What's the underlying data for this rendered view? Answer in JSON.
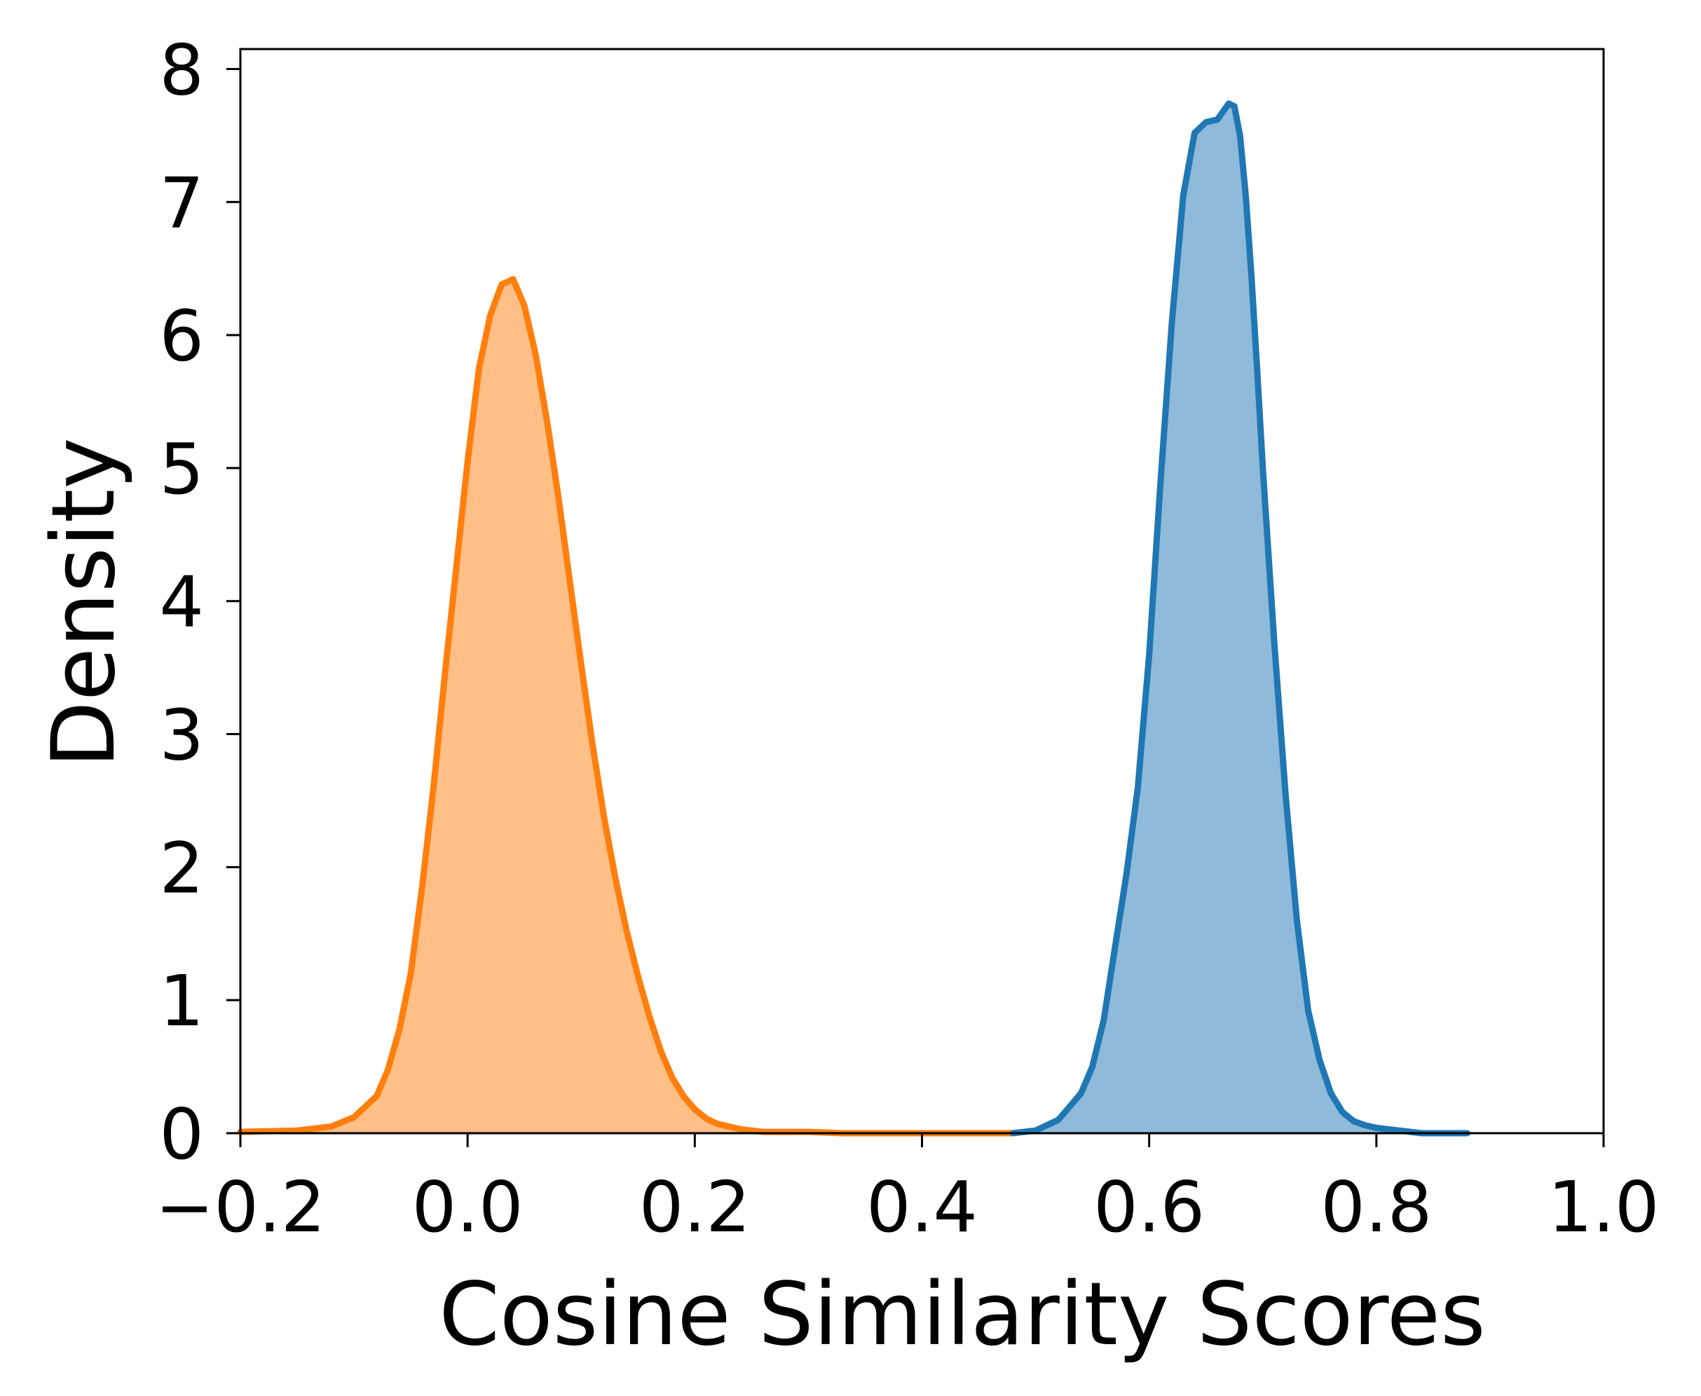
{
  "chart_data": {
    "type": "area",
    "title": "",
    "xlabel": "Cosine Similarity Scores",
    "ylabel": "Density",
    "xlim": [
      -0.2,
      1.0
    ],
    "ylim": [
      0,
      8.15
    ],
    "x_ticks": [
      -0.2,
      0.0,
      0.2,
      0.4,
      0.6,
      0.8,
      1.0
    ],
    "x_tick_labels": [
      "−0.2",
      "0.0",
      "0.2",
      "0.4",
      "0.6",
      "0.8",
      "1.0"
    ],
    "y_ticks": [
      0,
      1,
      2,
      3,
      4,
      5,
      6,
      7,
      8
    ],
    "y_tick_labels": [
      "0",
      "1",
      "2",
      "3",
      "4",
      "5",
      "6",
      "7",
      "8"
    ],
    "grid": false,
    "legend": "none",
    "series": [
      {
        "color": "#ff7f0e",
        "fill": "#ffbf86",
        "x": [
          -0.2,
          -0.15,
          -0.12,
          -0.1,
          -0.09,
          -0.08,
          -0.07,
          -0.06,
          -0.05,
          -0.04,
          -0.03,
          -0.02,
          -0.01,
          0.0,
          0.01,
          0.02,
          0.03,
          0.04,
          0.05,
          0.06,
          0.07,
          0.08,
          0.09,
          0.1,
          0.11,
          0.12,
          0.13,
          0.14,
          0.15,
          0.16,
          0.17,
          0.18,
          0.19,
          0.2,
          0.21,
          0.22,
          0.23,
          0.24,
          0.25,
          0.26,
          0.28,
          0.3,
          0.33,
          0.36,
          0.4,
          0.44,
          0.48
        ],
        "y": [
          0.01,
          0.02,
          0.05,
          0.12,
          0.2,
          0.28,
          0.48,
          0.78,
          1.2,
          1.85,
          2.6,
          3.45,
          4.25,
          5.05,
          5.75,
          6.15,
          6.38,
          6.42,
          6.22,
          5.85,
          5.35,
          4.78,
          4.15,
          3.52,
          2.92,
          2.38,
          1.92,
          1.52,
          1.18,
          0.88,
          0.62,
          0.42,
          0.28,
          0.18,
          0.11,
          0.07,
          0.05,
          0.03,
          0.02,
          0.01,
          0.01,
          0.01,
          0.0,
          0.0,
          0.0,
          0.0,
          0.0
        ]
      },
      {
        "color": "#1f77b4",
        "fill": "#90bad9",
        "x": [
          0.48,
          0.5,
          0.52,
          0.54,
          0.55,
          0.56,
          0.57,
          0.58,
          0.59,
          0.6,
          0.61,
          0.62,
          0.63,
          0.64,
          0.65,
          0.66,
          0.665,
          0.67,
          0.675,
          0.68,
          0.685,
          0.69,
          0.695,
          0.7,
          0.71,
          0.72,
          0.73,
          0.74,
          0.75,
          0.76,
          0.77,
          0.78,
          0.79,
          0.8,
          0.81,
          0.82,
          0.83,
          0.84,
          0.86,
          0.88
        ],
        "y": [
          0.0,
          0.02,
          0.1,
          0.3,
          0.5,
          0.85,
          1.4,
          1.95,
          2.6,
          3.6,
          4.9,
          6.1,
          7.05,
          7.52,
          7.6,
          7.62,
          7.68,
          7.74,
          7.72,
          7.5,
          7.05,
          6.45,
          5.75,
          5.0,
          3.7,
          2.55,
          1.6,
          0.92,
          0.55,
          0.3,
          0.16,
          0.09,
          0.06,
          0.04,
          0.03,
          0.02,
          0.01,
          0.0,
          0.0,
          0.0
        ]
      }
    ]
  }
}
